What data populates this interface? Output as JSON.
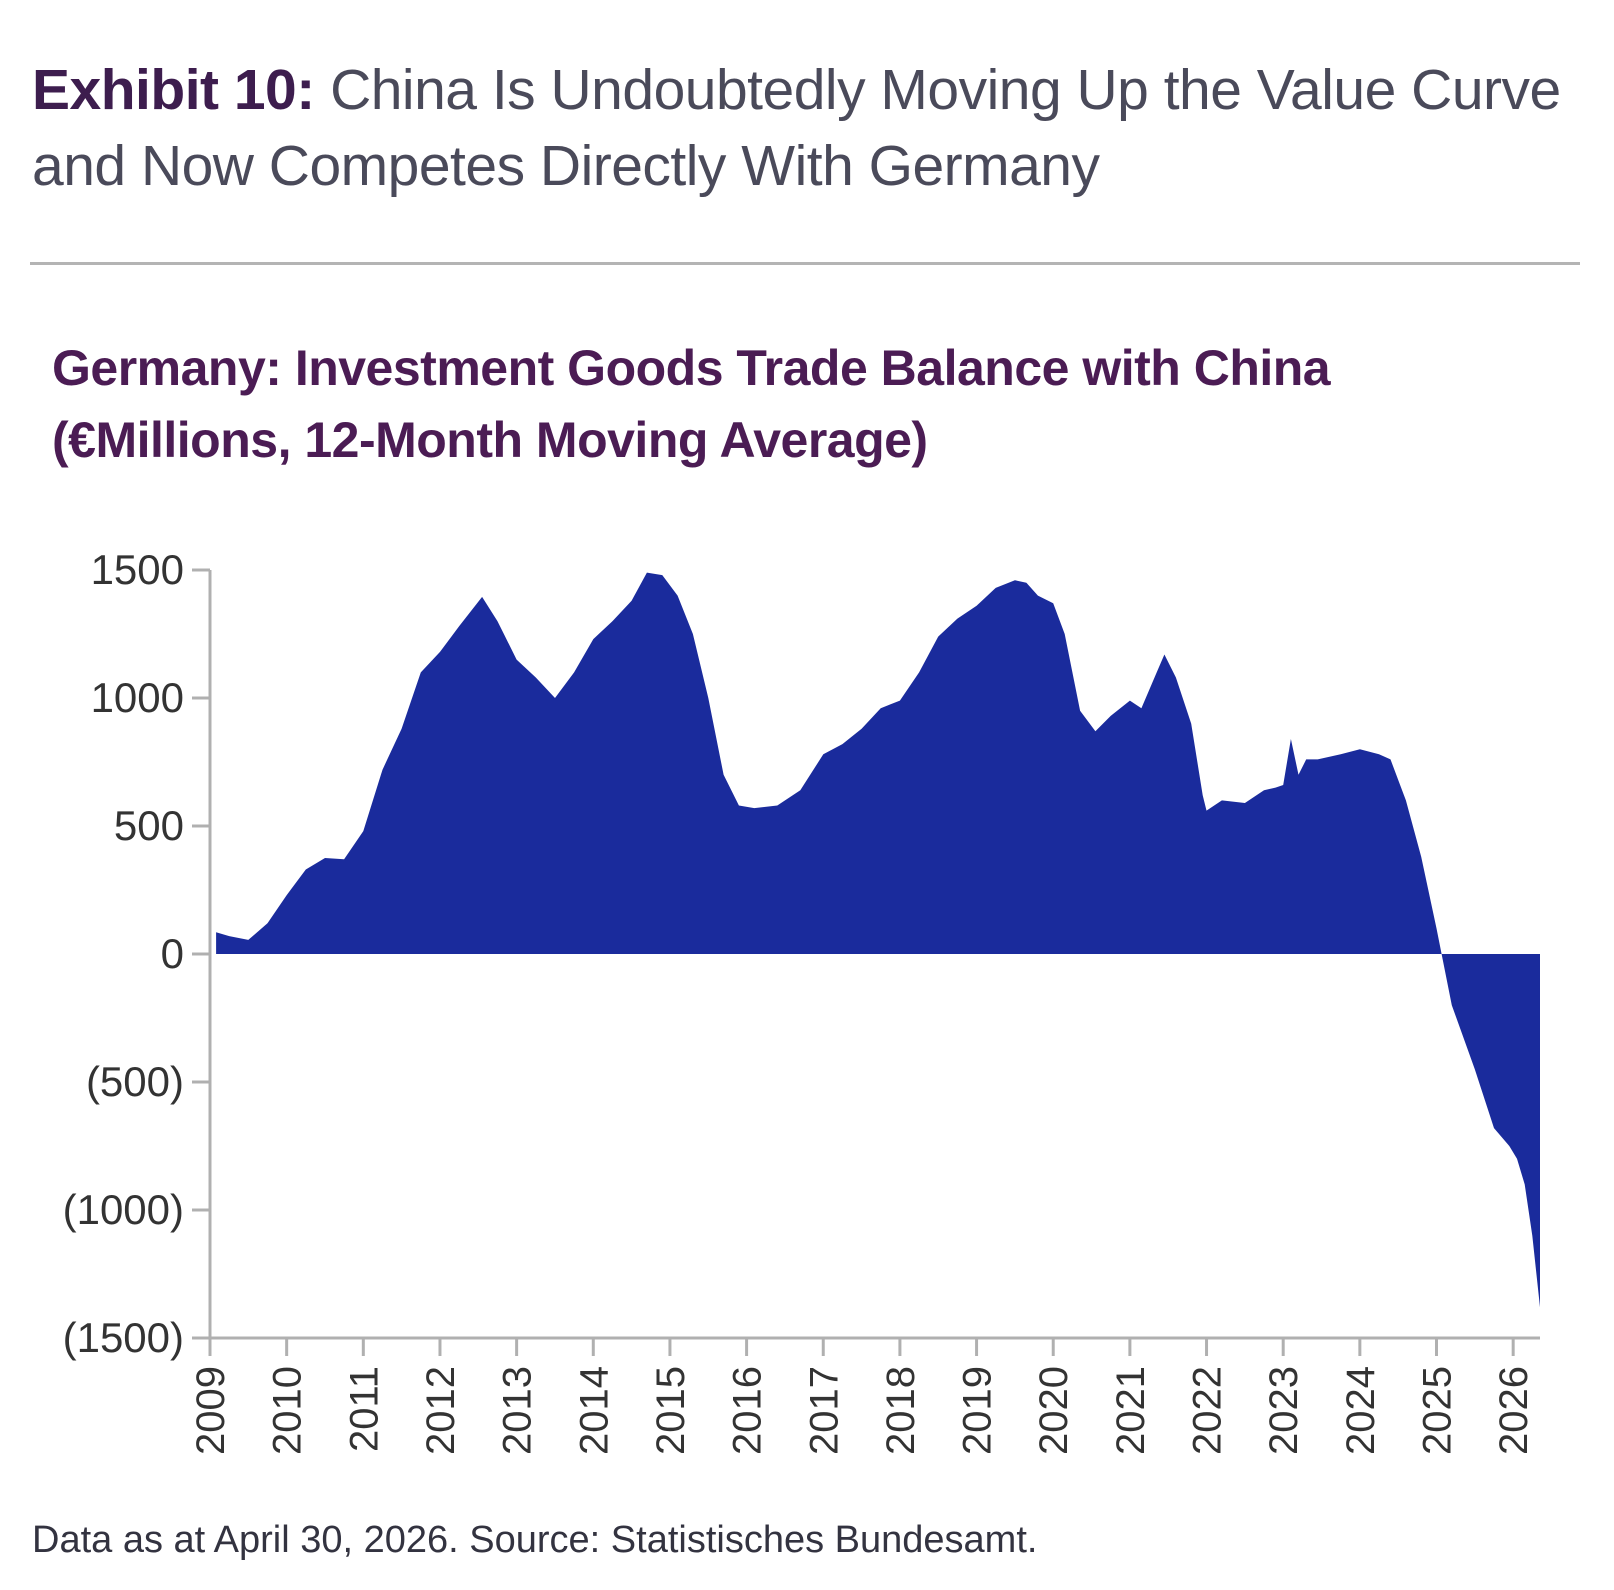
{
  "header": {
    "exhibit_label": "Exhibit 10:",
    "exhibit_text": " China Is Undoubtedly Moving Up the Value Curve and Now Competes Directly With Germany"
  },
  "chart_title": "Germany: Investment Goods Trade Balance with China (€Millions, 12-Month Moving Average)",
  "source_note": "Data as at April 30, 2026. Source: Statistisches Bundesamt.",
  "colors": {
    "fill": "#1a2b9c",
    "axis": "#b0b0b0",
    "tick_text": "#333333"
  },
  "chart_data": {
    "type": "area",
    "title": "Germany: Investment Goods Trade Balance with China (€Millions, 12-Month Moving Average)",
    "xlabel": "",
    "ylabel": "",
    "ylim": [
      -1500,
      1500
    ],
    "xlim": [
      2009,
      2026.35
    ],
    "yticks": [
      1500,
      1000,
      500,
      0,
      -500,
      -1000,
      -1500
    ],
    "ytick_labels": [
      "1500",
      "1000",
      "500",
      "0",
      "(500)",
      "(1000)",
      "(1500)"
    ],
    "xticks": [
      2009,
      2010,
      2011,
      2012,
      2013,
      2014,
      2015,
      2016,
      2017,
      2018,
      2019,
      2020,
      2021,
      2022,
      2023,
      2024,
      2025,
      2026
    ],
    "xtick_labels": [
      "2009",
      "2010",
      "2011",
      "2012",
      "2013",
      "2014",
      "2015",
      "2016",
      "2017",
      "2018",
      "2019",
      "2020",
      "2021",
      "2022",
      "2023",
      "2024",
      "2025",
      "2026"
    ],
    "grid": false,
    "legend": "none",
    "series": [
      {
        "x": [
          2009.08,
          2009.25,
          2009.5,
          2009.75,
          2010.0,
          2010.25,
          2010.5,
          2010.75,
          2011.0,
          2011.25,
          2011.5,
          2011.75,
          2012.0,
          2012.25,
          2012.55,
          2012.75,
          2013.0,
          2013.25,
          2013.5,
          2013.75,
          2014.0,
          2014.25,
          2014.5,
          2014.7,
          2014.9,
          2015.1,
          2015.3,
          2015.5,
          2015.7,
          2015.9,
          2016.1,
          2016.4,
          2016.7,
          2017.0,
          2017.25,
          2017.5,
          2017.75,
          2018.0,
          2018.25,
          2018.5,
          2018.75,
          2019.0,
          2019.25,
          2019.5,
          2019.65,
          2019.8,
          2020.0,
          2020.15,
          2020.35,
          2020.55,
          2020.75,
          2021.0,
          2021.15,
          2021.35,
          2021.45,
          2021.6,
          2021.8,
          2021.95,
          2022.0,
          2022.2,
          2022.5,
          2022.75,
          2022.9,
          2023.0,
          2023.1,
          2023.2,
          2023.3,
          2023.45,
          2023.75,
          2024.0,
          2024.25,
          2024.4,
          2024.6,
          2024.8,
          2025.0,
          2025.2,
          2025.5,
          2025.75,
          2025.95,
          2026.05,
          2026.15,
          2026.25,
          2026.35
        ],
        "y": [
          85,
          70,
          55,
          120,
          230,
          330,
          375,
          370,
          480,
          720,
          880,
          1100,
          1180,
          1280,
          1395,
          1300,
          1150,
          1080,
          1000,
          1100,
          1230,
          1300,
          1380,
          1490,
          1480,
          1400,
          1250,
          1000,
          700,
          580,
          570,
          580,
          640,
          780,
          820,
          880,
          960,
          990,
          1100,
          1240,
          1310,
          1360,
          1430,
          1460,
          1450,
          1400,
          1370,
          1250,
          950,
          870,
          930,
          990,
          960,
          1100,
          1170,
          1080,
          900,
          620,
          560,
          600,
          590,
          640,
          650,
          660,
          840,
          700,
          760,
          760,
          780,
          800,
          780,
          760,
          600,
          380,
          100,
          -200,
          -450,
          -680,
          -750,
          -800,
          -900,
          -1100,
          -1380
        ]
      }
    ]
  }
}
